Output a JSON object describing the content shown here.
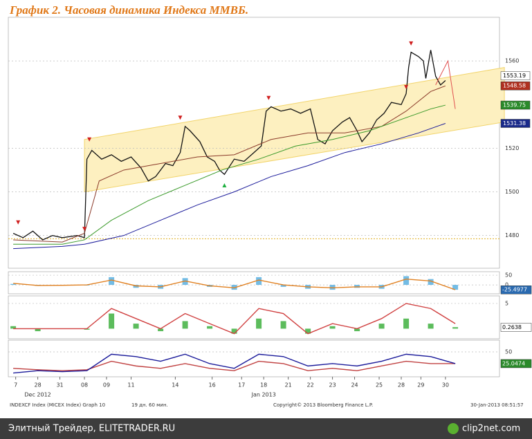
{
  "chart_data": {
    "type": "line",
    "title": "График 2.   Часовая динамика Индекса ММВБ.",
    "xlim": [
      -2,
      198
    ],
    "ylim": [
      1465,
      1580
    ],
    "yticks": [
      1480,
      1500,
      1520,
      1560
    ],
    "grid": true,
    "xticks": [
      {
        "value": 1,
        "label": "7"
      },
      {
        "value": 10,
        "label": "28"
      },
      {
        "value": 19,
        "label": "31"
      },
      {
        "value": 29,
        "label": "08"
      },
      {
        "value": 38,
        "label": "09"
      },
      {
        "value": 48,
        "label": "11"
      },
      {
        "value": 66,
        "label": "14"
      },
      {
        "value": 81,
        "label": "16"
      },
      {
        "value": 93,
        "label": "17"
      },
      {
        "value": 102,
        "label": "18"
      },
      {
        "value": 112,
        "label": "21"
      },
      {
        "value": 121,
        "label": "22"
      },
      {
        "value": 130,
        "label": "23"
      },
      {
        "value": 139,
        "label": "24"
      },
      {
        "value": 149,
        "label": "25"
      },
      {
        "value": 158,
        "label": "28"
      },
      {
        "value": 166,
        "label": "29"
      },
      {
        "value": 176,
        "label": "30"
      }
    ],
    "months": [
      {
        "value": 10,
        "label": "Dec 2012"
      },
      {
        "value": 102,
        "label": "Jan 2013"
      }
    ],
    "channel": {
      "color": "#fdf0c0",
      "edge": "#f2d46a",
      "x": [
        29,
        200
      ],
      "upper": [
        1524,
        1557
      ],
      "lower": [
        1500,
        1532
      ]
    },
    "level": {
      "value": 1478.5,
      "color": "#e0b020"
    },
    "series": [
      {
        "color": "#111111",
        "width": 1.3,
        "x": [
          0,
          4,
          8,
          12,
          16,
          20,
          26,
          29,
          30,
          32,
          36,
          40,
          44,
          48,
          52,
          55,
          58,
          62,
          65,
          68,
          70,
          72,
          76,
          79,
          82,
          84,
          86,
          90,
          94,
          98,
          101,
          103,
          105,
          109,
          113,
          117,
          121,
          124,
          127,
          130,
          134,
          137,
          140,
          142,
          145,
          148,
          151,
          154,
          158,
          160,
          161,
          162,
          165,
          167,
          168,
          170,
          172,
          174,
          176
        ],
        "values": [
          1481,
          1479,
          1482,
          1478,
          1480,
          1479,
          1480,
          1479,
          1515,
          1519,
          1515,
          1517,
          1514,
          1516,
          1511,
          1505,
          1507,
          1513,
          1512,
          1518,
          1530,
          1528,
          1523,
          1516,
          1514,
          1510,
          1508,
          1515,
          1514,
          1518,
          1521,
          1537,
          1539,
          1537,
          1538,
          1536,
          1538,
          1524,
          1522,
          1528,
          1532,
          1534,
          1528,
          1523,
          1527,
          1533,
          1536,
          1541,
          1540,
          1545,
          1557,
          1564,
          1562,
          1560,
          1552,
          1565,
          1553,
          1549,
          1551
        ]
      },
      {
        "color": "#e05050",
        "width": 1,
        "x": [
          172,
          177,
          180
        ],
        "values": [
          1549,
          1560,
          1538
        ]
      },
      {
        "color": "#8b3a2a",
        "width": 1,
        "x": [
          0,
          20,
          29,
          35,
          45,
          60,
          75,
          90,
          105,
          120,
          135,
          150,
          160,
          170,
          176
        ],
        "values": [
          1478,
          1477,
          1481,
          1505,
          1510,
          1513,
          1516,
          1517,
          1524,
          1527,
          1527,
          1530,
          1537,
          1546,
          1548.58
        ]
      },
      {
        "color": "#3a9a2a",
        "width": 1,
        "x": [
          0,
          20,
          29,
          40,
          55,
          70,
          85,
          100,
          115,
          130,
          145,
          160,
          170,
          176
        ],
        "values": [
          1476,
          1476,
          1478,
          1487,
          1496,
          1503,
          1510,
          1515,
          1521,
          1524,
          1528,
          1534,
          1538,
          1539.75
        ]
      },
      {
        "color": "#1a1a9a",
        "width": 1,
        "x": [
          0,
          20,
          29,
          45,
          60,
          75,
          90,
          105,
          120,
          135,
          150,
          165,
          176
        ],
        "values": [
          1474,
          1475,
          1476,
          1480,
          1487,
          1494,
          1500,
          1507,
          1512,
          1518,
          1522,
          1527,
          1531.38
        ]
      }
    ],
    "signals": [
      {
        "x": 2,
        "value": 1486,
        "color": "#d02020",
        "direction": "down"
      },
      {
        "x": 29,
        "value": 1483,
        "color": "#d02020",
        "direction": "down"
      },
      {
        "x": 31,
        "value": 1524,
        "color": "#d02020",
        "direction": "down"
      },
      {
        "x": 68,
        "value": 1534,
        "color": "#d02020",
        "direction": "down"
      },
      {
        "x": 86,
        "value": 1503,
        "color": "#20b040",
        "direction": "up"
      },
      {
        "x": 104,
        "value": 1543,
        "color": "#d02020",
        "direction": "down"
      },
      {
        "x": 160,
        "value": 1548,
        "color": "#d02020",
        "direction": "down"
      },
      {
        "x": 162,
        "value": 1568,
        "color": "#d02020",
        "direction": "down"
      }
    ],
    "price_tags": [
      1553.19,
      1548.58,
      1539.75,
      1531.38
    ],
    "price_tag_colors": [
      "#ffffff",
      "#b03020",
      "#2a8a2a",
      "#1a2a8a"
    ],
    "panels": [
      {
        "ylim": [
          -46,
          68
        ],
        "yticks": [
          50,
          0
        ],
        "tags": [
          -25.4977
        ],
        "tag_colors": [
          "#2a6ab0"
        ],
        "x": [
          0,
          10,
          20,
          30,
          40,
          50,
          60,
          70,
          80,
          90,
          100,
          110,
          120,
          130,
          140,
          150,
          160,
          170,
          180
        ],
        "series": [
          {
            "kind": "bar",
            "color": "#5ab0e0",
            "values": [
              5,
              -5,
              0,
              -3,
              40,
              -15,
              -20,
              35,
              -10,
              -25,
              40,
              -10,
              -20,
              -25,
              -15,
              -20,
              45,
              30,
              -25
            ]
          },
          {
            "kind": "line",
            "color": "#e08020",
            "values": [
              8,
              -3,
              -2,
              0,
              25,
              -5,
              -10,
              20,
              -5,
              -15,
              25,
              0,
              -10,
              -15,
              -10,
              -10,
              30,
              20,
              -25
            ]
          }
        ]
      },
      {
        "ylim": [
          -2,
          6.5
        ],
        "yticks": [
          5
        ],
        "tags": [
          0.2638
        ],
        "tag_colors": [
          "#ffffff"
        ],
        "x": [
          0,
          10,
          20,
          30,
          40,
          50,
          60,
          70,
          80,
          90,
          100,
          110,
          120,
          130,
          140,
          150,
          160,
          170,
          180
        ],
        "series": [
          {
            "kind": "bar",
            "color": "#40b040",
            "values": [
              0.5,
              -0.5,
              0,
              -0.2,
              3,
              1,
              -0.5,
              1.5,
              0.5,
              -1,
              2,
              1.5,
              -1,
              0.5,
              -0.5,
              1,
              2,
              1,
              0.3
            ]
          },
          {
            "kind": "line",
            "color": "#d04040",
            "values": [
              0,
              0,
              0,
              0,
              4,
              2,
              0,
              3,
              1,
              -1,
              4,
              3,
              -1,
              1,
              0,
              2,
              5,
              4,
              1
            ]
          }
        ]
      },
      {
        "ylim": [
          -3,
          75
        ],
        "yticks": [
          50
        ],
        "tags": [
          25.0474
        ],
        "tag_colors": [
          "#2a8a2a"
        ],
        "x": [
          0,
          10,
          20,
          30,
          40,
          50,
          60,
          70,
          80,
          90,
          100,
          110,
          120,
          130,
          140,
          150,
          160,
          170,
          180
        ],
        "series": [
          {
            "kind": "line",
            "color": "#c04040",
            "values": [
              15,
              12,
              10,
              12,
              30,
              20,
              15,
              25,
              15,
              10,
              30,
              25,
              10,
              15,
              10,
              20,
              30,
              25,
              25
            ]
          },
          {
            "kind": "line",
            "color": "#1a1a9a",
            "values": [
              5,
              10,
              8,
              10,
              45,
              40,
              30,
              45,
              25,
              15,
              45,
              40,
              20,
              25,
              20,
              30,
              45,
              40,
              25
            ]
          }
        ]
      }
    ],
    "footer": [
      "INDEXCF Index (MICEX Index) Graph 10",
      "19 дн. 60 мин.",
      "Copyright© 2013 Bloomberg Finance L.P.",
      "30-Jan-2013 08:51:57"
    ],
    "watermark": {
      "left": "Элитный Трейдер, ELITETRADER.RU",
      "right": "clip2net.com"
    }
  }
}
